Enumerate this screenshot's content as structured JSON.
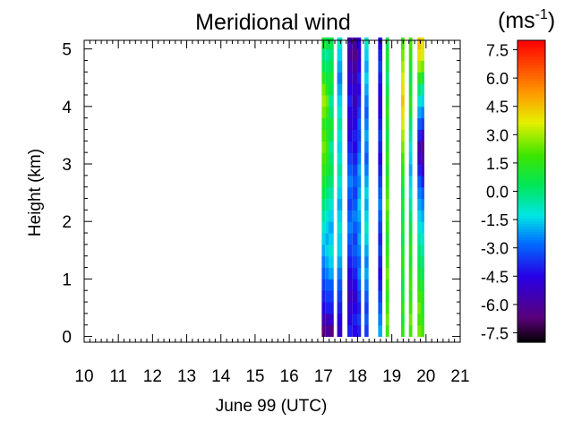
{
  "chart_data": {
    "type": "heatmap",
    "title": "Meridional wind",
    "xlabel": "June 99 (UTC)",
    "ylabel": "Height (km)",
    "xlim": [
      10,
      21
    ],
    "ylim": [
      -0.1,
      5.15
    ],
    "x_ticks": [
      10,
      11,
      12,
      13,
      14,
      15,
      16,
      17,
      18,
      19,
      20,
      21
    ],
    "y_ticks": [
      0,
      1,
      2,
      3,
      4,
      5
    ],
    "colorbar": {
      "unit_base": "(ms",
      "unit_exp": "-1",
      "unit_close": ")",
      "range": [
        -8.0,
        8.0
      ],
      "ticks": [
        "7.5",
        "6.0",
        "4.5",
        "3.0",
        "1.5",
        "0.0",
        "-1.5",
        "-3.0",
        "-4.5",
        "-6.0",
        "-7.5"
      ],
      "tick_values": [
        7.5,
        6.0,
        4.5,
        3.0,
        1.5,
        0.0,
        -1.5,
        -3.0,
        -4.5,
        -6.0,
        -7.5
      ]
    },
    "height_levels_km": [
      0.1,
      0.3,
      0.5,
      0.7,
      0.9,
      1.1,
      1.3,
      1.5,
      1.7,
      1.9,
      2.1,
      2.3,
      2.5,
      2.7,
      2.9,
      3.1,
      3.3,
      3.5,
      3.7,
      3.9,
      4.1,
      4.3,
      4.5,
      4.7,
      4.9,
      5.1
    ],
    "columns": [
      {
        "t0": 16.95,
        "t1": 17.05,
        "values": [
          -6.5,
          -5.5,
          -4.5,
          -4.0,
          -3.5,
          -3.0,
          -2.5,
          -2.0,
          -1.5,
          -1.0,
          -0.5,
          0.0,
          0.5,
          1.0,
          1.5,
          2.0,
          2.5,
          2.0,
          1.5,
          2.5,
          3.0,
          2.5,
          1.5,
          0.5,
          0.0,
          1.0
        ]
      },
      {
        "t0": 17.05,
        "t1": 17.15,
        "values": [
          -6.0,
          -5.5,
          -4.0,
          -3.5,
          -3.0,
          -2.5,
          -2.0,
          -1.5,
          -2.0,
          -1.5,
          -1.0,
          -0.5,
          0.0,
          0.5,
          1.0,
          1.5,
          2.0,
          1.5,
          1.0,
          2.0,
          2.5,
          1.5,
          0.5,
          0.0,
          -0.5,
          0.5
        ]
      },
      {
        "t0": 17.15,
        "t1": 17.3,
        "values": [
          -6.5,
          -5.0,
          -4.0,
          -3.5,
          -3.0,
          -2.0,
          -1.5,
          -1.0,
          -1.5,
          -2.0,
          -1.5,
          -1.0,
          -0.5,
          0.0,
          0.5,
          0.0,
          -0.5,
          0.5,
          1.0,
          0.0,
          -0.5,
          0.5,
          1.0,
          0.5,
          0.0,
          0.5
        ]
      },
      {
        "t0": 17.4,
        "t1": 17.55,
        "values": [
          -5.0,
          -4.5,
          -4.0,
          -3.5,
          -3.0,
          -2.5,
          -2.0,
          -1.5,
          -1.5,
          -1.0,
          -1.5,
          -2.0,
          -1.5,
          -1.0,
          -0.5,
          -1.0,
          -1.5,
          -1.0,
          -0.5,
          -1.0,
          -1.5,
          -2.0,
          -2.5,
          -2.0,
          -1.5,
          -1.0
        ]
      },
      {
        "t0": 17.7,
        "t1": 17.85,
        "values": [
          -4.0,
          -4.5,
          -5.0,
          -5.5,
          -5.0,
          -4.5,
          -4.0,
          -3.5,
          -3.0,
          -2.5,
          -3.0,
          -3.5,
          -3.0,
          -2.5,
          -3.0,
          -3.5,
          -4.0,
          -4.5,
          -5.0,
          -4.5,
          -4.0,
          -4.5,
          -5.0,
          -5.5,
          -6.0,
          -5.5
        ]
      },
      {
        "t0": 17.85,
        "t1": 18.0,
        "values": [
          -4.5,
          -4.0,
          -4.5,
          -5.0,
          -4.5,
          -4.0,
          -3.5,
          -3.0,
          -3.5,
          -3.0,
          -2.5,
          -3.0,
          -3.5,
          -3.0,
          -3.5,
          -4.0,
          -4.5,
          -4.0,
          -4.5,
          -5.0,
          -5.5,
          -5.0,
          -5.5,
          -6.0,
          -6.5,
          -6.0
        ]
      },
      {
        "t0": 18.0,
        "t1": 18.1,
        "values": [
          -4.0,
          -3.5,
          -4.0,
          -3.5,
          -3.0,
          -2.5,
          -3.0,
          -2.5,
          -2.0,
          -2.5,
          -2.0,
          -1.5,
          -2.0,
          -2.5,
          -2.0,
          -2.5,
          -3.0,
          -3.5,
          -3.0,
          -3.5,
          -4.0,
          -4.5,
          -4.0,
          -4.5,
          -5.0,
          -4.5
        ]
      },
      {
        "t0": 18.2,
        "t1": 18.32,
        "values": [
          -3.5,
          -3.0,
          -3.5,
          -3.0,
          -2.5,
          -2.0,
          -2.5,
          -2.0,
          -1.5,
          -1.0,
          -1.5,
          -2.0,
          -1.5,
          -2.0,
          -2.5,
          -3.0,
          -2.5,
          -2.0,
          -2.5,
          -3.0,
          -2.5,
          -2.0,
          -1.5,
          -2.0,
          -1.5,
          -1.0
        ]
      },
      {
        "t0": 18.6,
        "t1": 18.72,
        "values": [
          -2.0,
          -2.5,
          -3.0,
          -3.5,
          -4.0,
          -4.5,
          -4.0,
          -3.5,
          -4.0,
          -3.5,
          -3.0,
          -2.5,
          -3.0,
          -3.5,
          -4.0,
          -4.5,
          -4.0,
          -3.5,
          -4.0,
          -4.5,
          -5.0,
          -4.5,
          -4.0,
          -3.5,
          -4.0,
          -4.5
        ]
      },
      {
        "t0": 18.82,
        "t1": 18.92,
        "values": [
          2.0,
          2.5,
          2.0,
          1.5,
          2.0,
          2.5,
          2.0,
          1.5,
          1.0,
          1.5,
          2.0,
          2.5,
          2.0,
          1.5,
          1.0,
          1.5,
          1.0,
          0.5,
          1.0,
          1.5,
          1.0,
          0.5,
          0.0,
          0.5,
          1.0,
          0.5
        ]
      },
      {
        "t0": 19.27,
        "t1": 19.37,
        "values": [
          1.5,
          1.0,
          1.5,
          1.0,
          0.5,
          1.0,
          1.5,
          1.0,
          0.5,
          1.0,
          0.5,
          1.0,
          0.5,
          1.0,
          1.5,
          2.0,
          2.5,
          3.0,
          3.5,
          4.0,
          4.5,
          4.0,
          3.5,
          3.0,
          2.5,
          2.0
        ]
      },
      {
        "t0": 19.5,
        "t1": 19.6,
        "values": [
          2.0,
          2.5,
          2.0,
          1.5,
          2.0,
          1.5,
          1.0,
          1.5,
          1.0,
          0.5,
          0.0,
          -0.5,
          -1.0,
          -1.5,
          -2.0,
          -1.5,
          -1.0,
          -0.5,
          0.0,
          1.0,
          1.5,
          1.0,
          0.5,
          1.0,
          1.5,
          2.0
        ]
      },
      {
        "t0": 19.75,
        "t1": 19.85,
        "values": [
          2.5,
          2.0,
          2.5,
          2.0,
          1.5,
          1.0,
          0.5,
          0.0,
          -0.5,
          -1.0,
          -1.5,
          -2.0,
          -2.5,
          -3.0,
          -4.0,
          -5.0,
          -5.5,
          -4.0,
          -3.0,
          -2.0,
          -1.0,
          0.0,
          1.5,
          3.0,
          4.0,
          4.5
        ]
      },
      {
        "t0": 19.85,
        "t1": 19.95,
        "values": [
          2.0,
          1.5,
          1.0,
          1.5,
          1.0,
          0.5,
          0.0,
          -0.5,
          -1.0,
          -1.5,
          -2.0,
          -2.5,
          -3.0,
          -4.0,
          -5.0,
          -6.0,
          -6.5,
          -5.0,
          -3.5,
          -2.5,
          -1.5,
          -0.5,
          1.0,
          2.5,
          3.5,
          4.0
        ]
      }
    ]
  }
}
